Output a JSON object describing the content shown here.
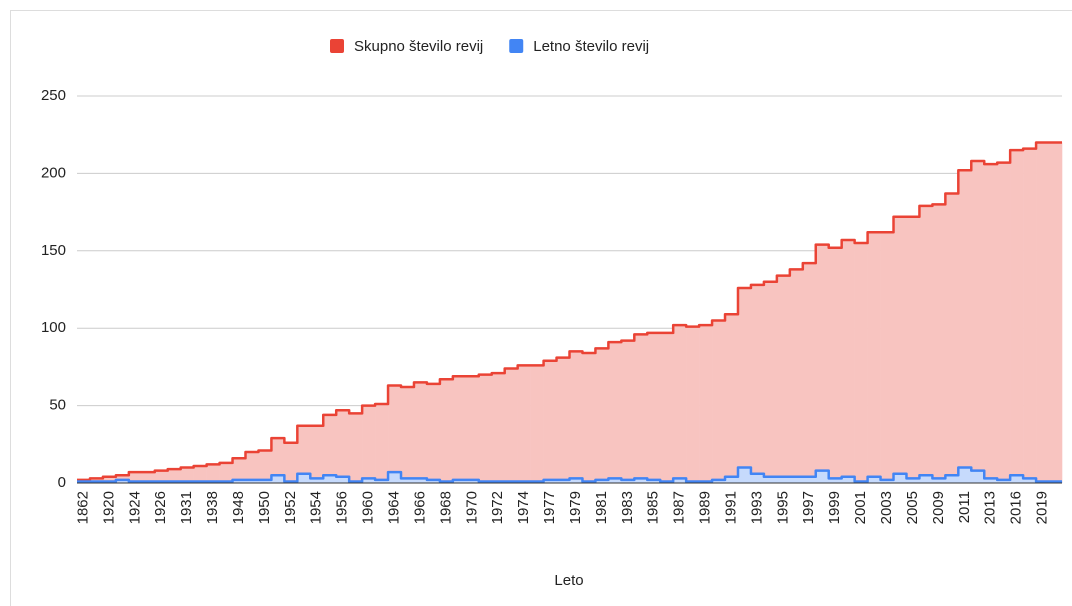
{
  "chart_data": {
    "type": "stepped_area",
    "x_label": "Leto",
    "categories": [
      "1862",
      null,
      "1920",
      null,
      "1924",
      null,
      "1926",
      null,
      "1931",
      null,
      "1938",
      null,
      "1948",
      null,
      "1950",
      null,
      "1952",
      null,
      "1954",
      null,
      "1956",
      null,
      "1960",
      null,
      "1964",
      null,
      "1966",
      null,
      "1968",
      null,
      "1970",
      null,
      "1972",
      null,
      "1974",
      null,
      "1977",
      null,
      "1979",
      null,
      "1981",
      null,
      "1983",
      null,
      "1985",
      null,
      "1987",
      null,
      "1989",
      null,
      "1991",
      null,
      "1993",
      null,
      "1995",
      null,
      "1997",
      null,
      "1999",
      null,
      "2001",
      null,
      "2003",
      null,
      "2005",
      null,
      "2009",
      null,
      "2011",
      null,
      "2013",
      null,
      "2016",
      null,
      "2019",
      null
    ],
    "series": [
      {
        "name": "Skupno število revij",
        "color": "#ea4335",
        "fill": "#f8c4c0",
        "values": [
          2,
          3,
          4,
          5,
          7,
          7,
          8,
          9,
          10,
          11,
          12,
          13,
          16,
          20,
          21,
          29,
          26,
          37,
          37,
          44,
          47,
          45,
          50,
          51,
          63,
          62,
          65,
          64,
          67,
          69,
          69,
          70,
          71,
          74,
          76,
          76,
          79,
          81,
          85,
          84,
          87,
          91,
          92,
          96,
          97,
          97,
          102,
          101,
          102,
          105,
          109,
          126,
          128,
          130,
          134,
          138,
          142,
          154,
          152,
          157,
          155,
          162,
          162,
          172,
          172,
          179,
          180,
          187,
          202,
          208,
          206,
          207,
          215,
          216,
          220,
          220
        ]
      },
      {
        "name": "Letno število revij",
        "color": "#4285f4",
        "fill": "#c6dafc",
        "values": [
          1,
          1,
          1,
          2,
          1,
          1,
          1,
          1,
          1,
          1,
          1,
          1,
          2,
          2,
          2,
          5,
          1,
          6,
          3,
          5,
          4,
          1,
          3,
          2,
          7,
          3,
          3,
          2,
          1,
          2,
          2,
          1,
          1,
          1,
          1,
          1,
          2,
          2,
          3,
          1,
          2,
          3,
          2,
          3,
          2,
          1,
          3,
          1,
          1,
          2,
          4,
          10,
          6,
          4,
          4,
          4,
          4,
          8,
          3,
          4,
          1,
          4,
          2,
          6,
          3,
          5,
          3,
          5,
          10,
          8,
          3,
          2,
          5,
          3,
          1,
          1
        ]
      }
    ],
    "ylim": [
      0,
      250
    ],
    "yticks": [
      0,
      50,
      100,
      150,
      200,
      250
    ],
    "grid": true,
    "legend": "top"
  }
}
